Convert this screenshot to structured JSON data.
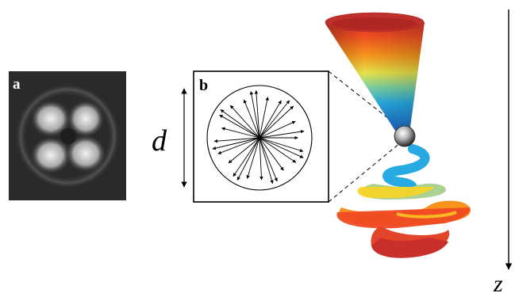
{
  "panel_a": {
    "label": "a"
  },
  "panel_b": {
    "label": "b"
  },
  "dimension": {
    "label": "d"
  },
  "axis": {
    "label": "z"
  },
  "colors": {
    "panel_a_background": "#2a2a2a",
    "spectrum": [
      "#cf1f1f",
      "#ef4a23",
      "#f7941d",
      "#f9d423",
      "#a8d08d",
      "#27aae1",
      "#1c75bc"
    ]
  }
}
